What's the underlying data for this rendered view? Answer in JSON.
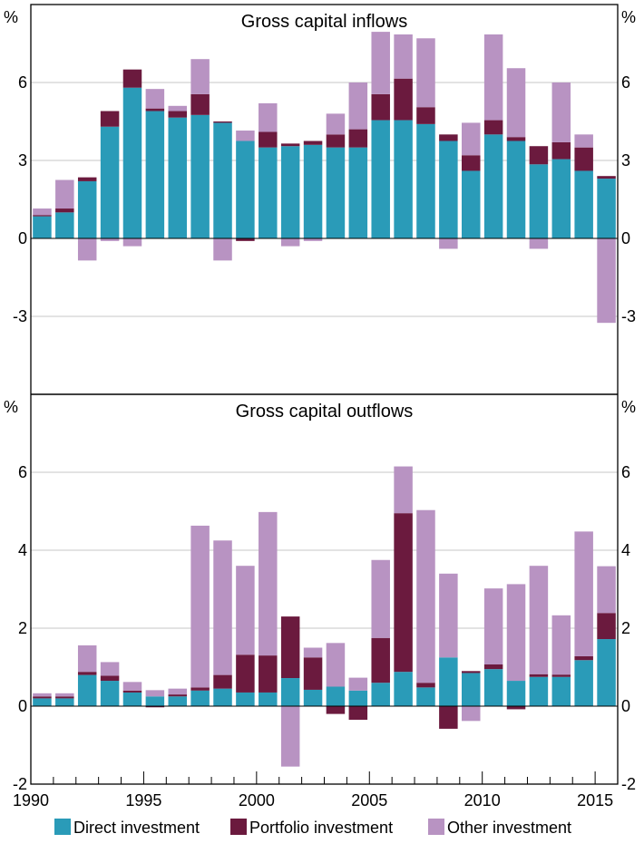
{
  "colors": {
    "direct": "#2a9bb8",
    "portfolio": "#6b1a3e",
    "other": "#b893c2",
    "grid": "#c7c7c7",
    "frame": "#000000"
  },
  "legend": [
    {
      "key": "direct",
      "label": "Direct investment"
    },
    {
      "key": "portfolio",
      "label": "Portfolio investment"
    },
    {
      "key": "other",
      "label": "Other investment"
    }
  ],
  "chart_data": [
    {
      "type": "bar",
      "stacked": true,
      "title": "Gross capital inflows",
      "unit_left": "%",
      "unit_right": "%",
      "ylim": [
        -6,
        9
      ],
      "yticks": [
        -3,
        0,
        3,
        6
      ],
      "ytick_labels": [
        "-3",
        "0",
        "3",
        "6"
      ],
      "grid": true,
      "x": [
        1990,
        1991,
        1992,
        1993,
        1994,
        1995,
        1996,
        1997,
        1998,
        1999,
        2000,
        2001,
        2002,
        2003,
        2004,
        2005,
        2006,
        2007,
        2008,
        2009,
        2010,
        2011,
        2012,
        2013,
        2014,
        2015
      ],
      "series": [
        {
          "name": "Direct investment",
          "key": "direct",
          "values": [
            0.85,
            1.0,
            2.2,
            4.3,
            5.8,
            4.9,
            4.65,
            4.75,
            4.45,
            3.75,
            3.5,
            3.55,
            3.6,
            3.5,
            3.5,
            4.55,
            4.55,
            4.4,
            3.75,
            2.6,
            4.0,
            3.75,
            2.85,
            3.05,
            2.6,
            2.3
          ]
        },
        {
          "name": "Portfolio investment",
          "key": "portfolio",
          "values": [
            0.05,
            0.15,
            0.15,
            0.6,
            0.7,
            0.1,
            0.25,
            0.8,
            0.05,
            -0.1,
            0.6,
            0.1,
            0.15,
            0.5,
            0.7,
            1.0,
            1.6,
            0.65,
            0.25,
            0.6,
            0.55,
            0.15,
            0.7,
            0.65,
            0.9,
            0.1
          ]
        },
        {
          "name": "Other investment",
          "key": "other",
          "values": [
            0.25,
            1.1,
            -0.85,
            -0.1,
            -0.3,
            0.75,
            0.2,
            1.35,
            -0.85,
            0.4,
            1.1,
            -0.3,
            -0.1,
            0.8,
            1.8,
            2.4,
            1.7,
            2.65,
            -0.4,
            1.25,
            3.3,
            2.65,
            -0.4,
            2.3,
            0.5,
            -3.25
          ]
        }
      ]
    },
    {
      "type": "bar",
      "stacked": true,
      "title": "Gross capital outflows",
      "unit_left": "%",
      "unit_right": "%",
      "ylim": [
        -2,
        8
      ],
      "yticks": [
        -2,
        0,
        2,
        4,
        6
      ],
      "ytick_labels": [
        "-2",
        "0",
        "2",
        "4",
        "6"
      ],
      "grid": true,
      "xtick_labels": [
        "1990",
        "1995",
        "2000",
        "2005",
        "2010",
        "2015"
      ],
      "x": [
        1990,
        1991,
        1992,
        1993,
        1994,
        1995,
        1996,
        1997,
        1998,
        1999,
        2000,
        2001,
        2002,
        2003,
        2004,
        2005,
        2006,
        2007,
        2008,
        2009,
        2010,
        2011,
        2012,
        2013,
        2014,
        2015
      ],
      "series": [
        {
          "name": "Direct investment",
          "key": "direct",
          "values": [
            0.2,
            0.2,
            0.8,
            0.65,
            0.35,
            0.25,
            0.25,
            0.4,
            0.45,
            0.35,
            0.35,
            0.72,
            0.42,
            0.5,
            0.4,
            0.6,
            0.88,
            0.48,
            1.25,
            0.85,
            0.95,
            0.65,
            0.75,
            0.75,
            1.18,
            1.72
          ]
        },
        {
          "name": "Portfolio investment",
          "key": "portfolio",
          "values": [
            0.05,
            0.05,
            0.08,
            0.13,
            0.05,
            -0.03,
            0.05,
            0.08,
            0.35,
            0.97,
            0.95,
            1.58,
            0.83,
            -0.2,
            -0.35,
            1.15,
            4.07,
            0.12,
            -0.58,
            0.05,
            0.12,
            -0.08,
            0.07,
            0.06,
            0.1,
            0.67
          ]
        },
        {
          "name": "Other investment",
          "key": "other",
          "values": [
            0.08,
            0.08,
            0.68,
            0.35,
            0.22,
            0.16,
            0.15,
            4.15,
            3.45,
            2.28,
            3.68,
            -1.55,
            0.25,
            1.12,
            0.33,
            2.0,
            1.2,
            4.43,
            2.15,
            -0.38,
            1.95,
            2.48,
            2.78,
            1.52,
            3.2,
            1.2
          ]
        }
      ]
    }
  ]
}
